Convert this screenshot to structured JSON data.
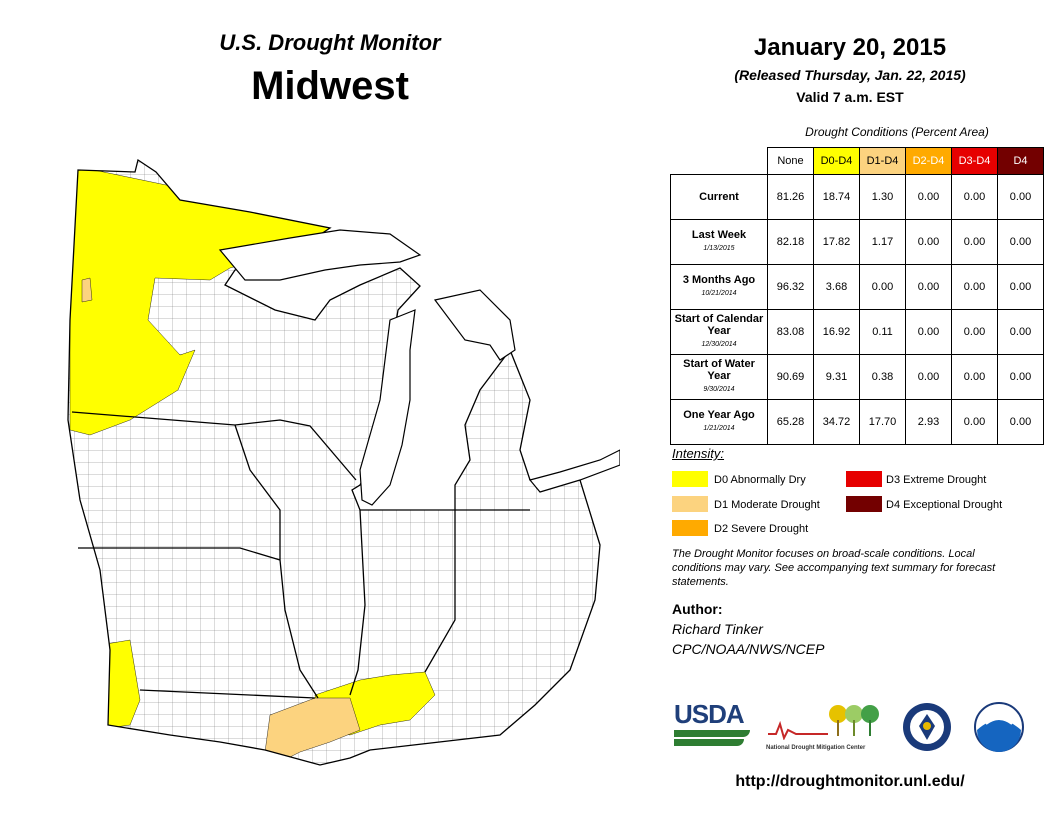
{
  "header": {
    "subtitle": "U.S. Drought Monitor",
    "region": "Midwest",
    "date": "January 20, 2015",
    "released": "(Released Thursday, Jan. 22, 2015)",
    "valid": "Valid  7 a.m. EST"
  },
  "table": {
    "caption": "Drought Conditions (Percent Area)",
    "columns": [
      "None",
      "D0-D4",
      "D1-D4",
      "D2-D4",
      "D3-D4",
      "D4"
    ],
    "rows": [
      {
        "label": "Current",
        "date": "",
        "values": [
          "81.26",
          "18.74",
          "1.30",
          "0.00",
          "0.00",
          "0.00"
        ]
      },
      {
        "label": "Last Week",
        "date": "1/13/2015",
        "values": [
          "82.18",
          "17.82",
          "1.17",
          "0.00",
          "0.00",
          "0.00"
        ]
      },
      {
        "label": "3 Months Ago",
        "date": "10/21/2014",
        "values": [
          "96.32",
          "3.68",
          "0.00",
          "0.00",
          "0.00",
          "0.00"
        ]
      },
      {
        "label": "Start of Calendar Year",
        "date": "12/30/2014",
        "values": [
          "83.08",
          "16.92",
          "0.11",
          "0.00",
          "0.00",
          "0.00"
        ]
      },
      {
        "label": "Start of Water Year",
        "date": "9/30/2014",
        "values": [
          "90.69",
          "9.31",
          "0.38",
          "0.00",
          "0.00",
          "0.00"
        ]
      },
      {
        "label": "One Year Ago",
        "date": "1/21/2014",
        "values": [
          "65.28",
          "34.72",
          "17.70",
          "2.93",
          "0.00",
          "0.00"
        ]
      }
    ]
  },
  "legend": {
    "title": "Intensity:",
    "items": [
      {
        "label": "D0 Abnormally Dry",
        "color": "#ffff00"
      },
      {
        "label": "D1 Moderate Drought",
        "color": "#fcd37f"
      },
      {
        "label": "D2 Severe Drought",
        "color": "#ffaa00"
      },
      {
        "label": "D3 Extreme Drought",
        "color": "#e60000"
      },
      {
        "label": "D4 Exceptional Drought",
        "color": "#730000"
      }
    ]
  },
  "note": "The Drought Monitor focuses on broad-scale conditions. Local conditions may vary. See accompanying text summary for forecast statements.",
  "author": {
    "heading": "Author:",
    "name": "Richard Tinker",
    "org": "CPC/NOAA/NWS/NCEP"
  },
  "logos": {
    "usda": "USDA",
    "ndmc": "National Drought Mitigation Center"
  },
  "url": "http://droughtmonitor.unl.edu/",
  "colors": {
    "header_d0": "#ffff00",
    "header_d1": "#fcd37f",
    "header_d2": "#ffaa00",
    "header_d3": "#e60000",
    "header_d4": "#730000",
    "lake": "#ffffff",
    "land": "#ffffff"
  }
}
